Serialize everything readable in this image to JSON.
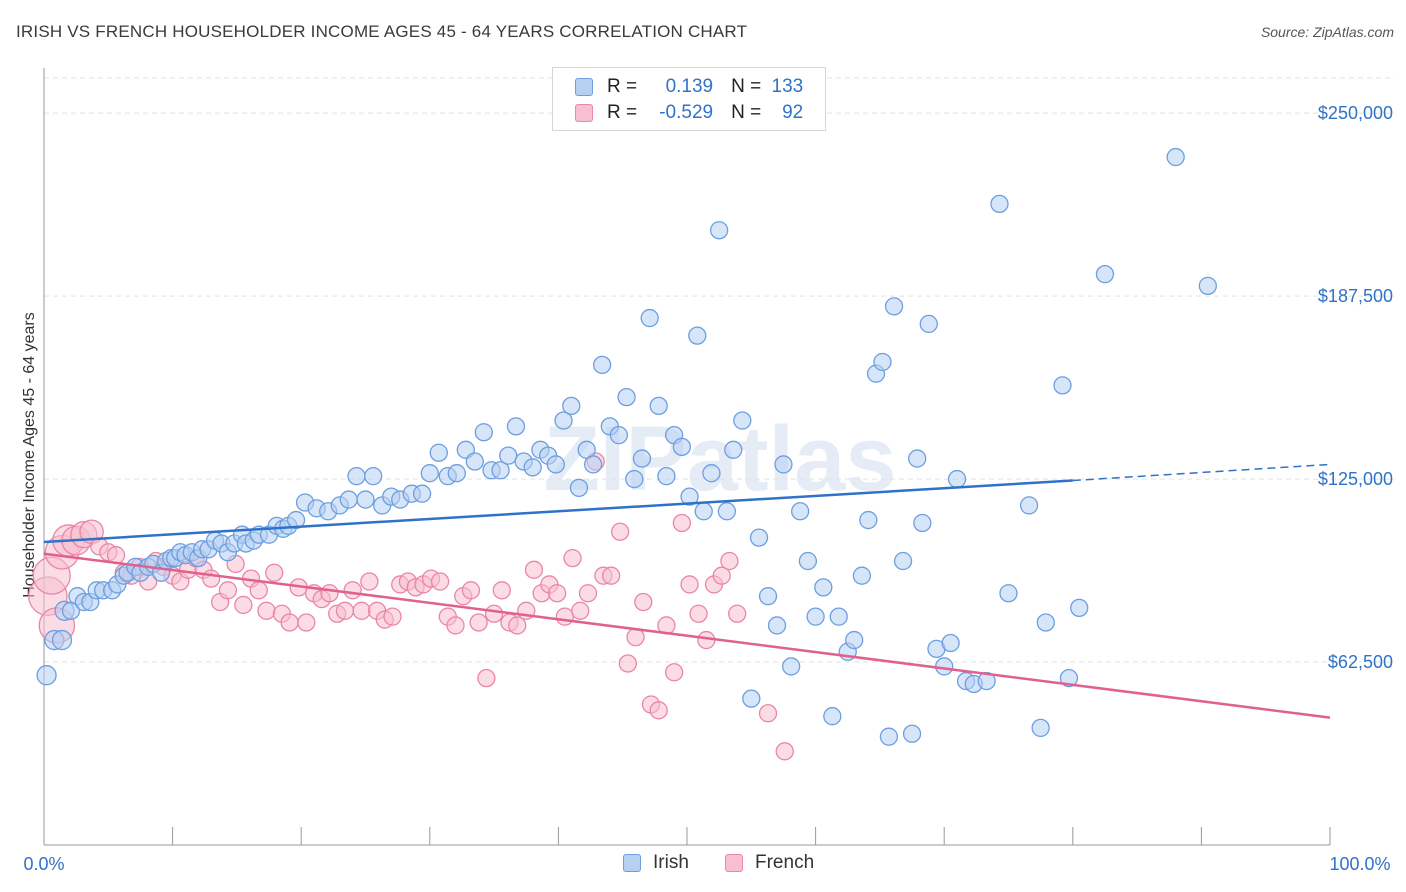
{
  "title": "IRISH VS FRENCH HOUSEHOLDER INCOME AGES 45 - 64 YEARS CORRELATION CHART",
  "source": "Source: ZipAtlas.com",
  "watermark": "ZIPatlas",
  "legend": {
    "r_label": "R =",
    "n_label": "N =",
    "rows": [
      {
        "name": "Irish",
        "r": "0.139",
        "n": "133",
        "fill": "#b6d0f2",
        "stroke": "#6c9fe0"
      },
      {
        "name": "French",
        "r": "-0.529",
        "n": "92",
        "fill": "#f8bfd0",
        "stroke": "#ea86a6"
      }
    ]
  },
  "bottom_legend": [
    {
      "name": "Irish",
      "fill": "#b6d0f2",
      "stroke": "#6c9fe0"
    },
    {
      "name": "French",
      "fill": "#f8bfd0",
      "stroke": "#ea86a6"
    }
  ],
  "chart_data": {
    "type": "scatter",
    "title": "IRISH VS FRENCH HOUSEHOLDER INCOME AGES 45 - 64 YEARS CORRELATION CHART",
    "xlabel": "",
    "ylabel": "Householder Income Ages 45 - 64 years",
    "xlim": [
      0,
      100
    ],
    "ylim": [
      0,
      262000
    ],
    "x_tick_labels": [
      "0.0%",
      "100.0%"
    ],
    "y_ticks": [
      62500,
      125000,
      187500,
      250000
    ],
    "y_tick_labels": [
      "$62,500",
      "$125,000",
      "$187,500",
      "$250,000"
    ],
    "grid": true,
    "legend_position": "top-center",
    "colors": {
      "Irish": "#2f72c9",
      "French": "#e0608f"
    },
    "series": [
      {
        "name": "Irish",
        "trend": {
          "x": [
            0,
            80
          ],
          "y": [
            103500,
            124500
          ],
          "dashed_to": [
            100,
            130000
          ]
        },
        "points": [
          [
            0.2,
            58000
          ],
          [
            0.8,
            70000
          ],
          [
            1.4,
            70000
          ],
          [
            1.6,
            80000
          ],
          [
            2.1,
            80000
          ],
          [
            2.6,
            85000
          ],
          [
            3.1,
            83000
          ],
          [
            3.6,
            83000
          ],
          [
            4.1,
            87000
          ],
          [
            4.6,
            87000
          ],
          [
            5.3,
            87000
          ],
          [
            5.7,
            89000
          ],
          [
            6.2,
            92000
          ],
          [
            6.5,
            93000
          ],
          [
            7.1,
            95000
          ],
          [
            7.5,
            93000
          ],
          [
            8.1,
            95000
          ],
          [
            8.5,
            96000
          ],
          [
            9.1,
            93000
          ],
          [
            9.5,
            97000
          ],
          [
            9.9,
            98000
          ],
          [
            10.2,
            98000
          ],
          [
            10.6,
            100000
          ],
          [
            11.0,
            99000
          ],
          [
            11.5,
            100000
          ],
          [
            12.0,
            98000
          ],
          [
            12.3,
            101000
          ],
          [
            12.8,
            101000
          ],
          [
            13.3,
            104000
          ],
          [
            13.8,
            103000
          ],
          [
            14.3,
            100000
          ],
          [
            14.8,
            103000
          ],
          [
            15.4,
            106000
          ],
          [
            15.7,
            103000
          ],
          [
            16.3,
            104000
          ],
          [
            16.7,
            106000
          ],
          [
            17.5,
            106000
          ],
          [
            18.1,
            109000
          ],
          [
            18.6,
            108000
          ],
          [
            19.0,
            109000
          ],
          [
            19.6,
            111000
          ],
          [
            20.3,
            117000
          ],
          [
            21.2,
            115000
          ],
          [
            22.1,
            114000
          ],
          [
            23.0,
            116000
          ],
          [
            23.7,
            118000
          ],
          [
            24.3,
            126000
          ],
          [
            25.0,
            118000
          ],
          [
            25.6,
            126000
          ],
          [
            26.3,
            116000
          ],
          [
            27.0,
            119000
          ],
          [
            27.7,
            118000
          ],
          [
            28.6,
            120000
          ],
          [
            29.4,
            120000
          ],
          [
            30.0,
            127000
          ],
          [
            30.7,
            134000
          ],
          [
            31.4,
            126000
          ],
          [
            32.1,
            127000
          ],
          [
            32.8,
            135000
          ],
          [
            33.5,
            131000
          ],
          [
            34.2,
            141000
          ],
          [
            34.8,
            128000
          ],
          [
            35.5,
            128000
          ],
          [
            36.1,
            133000
          ],
          [
            36.7,
            143000
          ],
          [
            37.3,
            131000
          ],
          [
            38.0,
            129000
          ],
          [
            38.6,
            135000
          ],
          [
            39.2,
            133000
          ],
          [
            39.8,
            130000
          ],
          [
            40.4,
            145000
          ],
          [
            41.0,
            150000
          ],
          [
            41.6,
            122000
          ],
          [
            42.2,
            135000
          ],
          [
            42.7,
            130000
          ],
          [
            43.4,
            164000
          ],
          [
            44.0,
            143000
          ],
          [
            44.7,
            140000
          ],
          [
            45.3,
            153000
          ],
          [
            45.9,
            125000
          ],
          [
            46.5,
            132000
          ],
          [
            47.1,
            180000
          ],
          [
            47.8,
            150000
          ],
          [
            48.4,
            126000
          ],
          [
            49.0,
            140000
          ],
          [
            49.6,
            136000
          ],
          [
            50.2,
            119000
          ],
          [
            50.8,
            174000
          ],
          [
            51.3,
            114000
          ],
          [
            51.9,
            127000
          ],
          [
            52.5,
            210000
          ],
          [
            53.1,
            114000
          ],
          [
            53.6,
            135000
          ],
          [
            54.3,
            145000
          ],
          [
            55.0,
            50000
          ],
          [
            55.6,
            105000
          ],
          [
            56.3,
            85000
          ],
          [
            57.0,
            75000
          ],
          [
            57.5,
            130000
          ],
          [
            58.1,
            61000
          ],
          [
            58.8,
            114000
          ],
          [
            59.4,
            97000
          ],
          [
            60.0,
            78000
          ],
          [
            60.6,
            88000
          ],
          [
            61.3,
            44000
          ],
          [
            61.8,
            78000
          ],
          [
            62.5,
            66000
          ],
          [
            63.0,
            70000
          ],
          [
            63.6,
            92000
          ],
          [
            64.1,
            111000
          ],
          [
            64.7,
            161000
          ],
          [
            65.2,
            165000
          ],
          [
            65.7,
            37000
          ],
          [
            66.1,
            184000
          ],
          [
            66.8,
            97000
          ],
          [
            67.5,
            38000
          ],
          [
            67.9,
            132000
          ],
          [
            68.3,
            110000
          ],
          [
            68.8,
            178000
          ],
          [
            69.4,
            67000
          ],
          [
            70.0,
            61000
          ],
          [
            70.5,
            69000
          ],
          [
            71.0,
            125000
          ],
          [
            71.7,
            56000
          ],
          [
            72.3,
            55000
          ],
          [
            73.3,
            56000
          ],
          [
            74.3,
            219000
          ],
          [
            75.0,
            86000
          ],
          [
            76.6,
            116000
          ],
          [
            77.5,
            40000
          ],
          [
            77.9,
            76000
          ],
          [
            79.2,
            157000
          ],
          [
            79.7,
            57000
          ],
          [
            80.5,
            81000
          ],
          [
            82.5,
            195000
          ],
          [
            88.0,
            235000
          ],
          [
            90.5,
            191000
          ]
        ]
      },
      {
        "name": "French",
        "trend": {
          "x": [
            0,
            100
          ],
          "y": [
            99500,
            43500
          ]
        },
        "points": [
          [
            0.3,
            85000
          ],
          [
            0.6,
            92000
          ],
          [
            1.0,
            75000
          ],
          [
            1.4,
            100000
          ],
          [
            1.9,
            104000
          ],
          [
            2.5,
            104000
          ],
          [
            3.1,
            106000
          ],
          [
            3.7,
            107000
          ],
          [
            4.3,
            102000
          ],
          [
            5.0,
            100000
          ],
          [
            5.6,
            99000
          ],
          [
            6.2,
            93000
          ],
          [
            6.8,
            92000
          ],
          [
            7.4,
            95000
          ],
          [
            8.1,
            90000
          ],
          [
            8.7,
            97000
          ],
          [
            9.3,
            95000
          ],
          [
            10.0,
            92000
          ],
          [
            10.6,
            90000
          ],
          [
            11.2,
            94000
          ],
          [
            11.8,
            98000
          ],
          [
            12.4,
            94000
          ],
          [
            13.0,
            91000
          ],
          [
            13.7,
            83000
          ],
          [
            14.3,
            87000
          ],
          [
            14.9,
            96000
          ],
          [
            15.5,
            82000
          ],
          [
            16.1,
            91000
          ],
          [
            16.7,
            87000
          ],
          [
            17.3,
            80000
          ],
          [
            17.9,
            93000
          ],
          [
            18.5,
            79000
          ],
          [
            19.1,
            76000
          ],
          [
            19.8,
            88000
          ],
          [
            20.4,
            76000
          ],
          [
            21.0,
            86000
          ],
          [
            21.6,
            84000
          ],
          [
            22.2,
            86000
          ],
          [
            22.8,
            79000
          ],
          [
            23.4,
            80000
          ],
          [
            24.0,
            87000
          ],
          [
            24.7,
            80000
          ],
          [
            25.3,
            90000
          ],
          [
            25.9,
            80000
          ],
          [
            26.5,
            77000
          ],
          [
            27.1,
            78000
          ],
          [
            27.7,
            89000
          ],
          [
            28.3,
            90000
          ],
          [
            28.9,
            88000
          ],
          [
            29.5,
            89000
          ],
          [
            30.1,
            91000
          ],
          [
            30.8,
            90000
          ],
          [
            31.4,
            78000
          ],
          [
            32.0,
            75000
          ],
          [
            32.6,
            85000
          ],
          [
            33.2,
            87000
          ],
          [
            33.8,
            76000
          ],
          [
            34.4,
            57000
          ],
          [
            35.0,
            79000
          ],
          [
            35.6,
            87000
          ],
          [
            36.2,
            76000
          ],
          [
            36.8,
            75000
          ],
          [
            37.5,
            80000
          ],
          [
            38.1,
            94000
          ],
          [
            38.7,
            86000
          ],
          [
            39.3,
            89000
          ],
          [
            39.9,
            86000
          ],
          [
            40.5,
            78000
          ],
          [
            41.1,
            98000
          ],
          [
            41.7,
            80000
          ],
          [
            42.3,
            86000
          ],
          [
            42.9,
            131000
          ],
          [
            43.5,
            92000
          ],
          [
            44.1,
            92000
          ],
          [
            44.8,
            107000
          ],
          [
            45.4,
            62000
          ],
          [
            46.0,
            71000
          ],
          [
            46.6,
            83000
          ],
          [
            47.2,
            48000
          ],
          [
            47.8,
            46000
          ],
          [
            48.4,
            75000
          ],
          [
            49.0,
            59000
          ],
          [
            49.6,
            110000
          ],
          [
            50.2,
            89000
          ],
          [
            50.9,
            79000
          ],
          [
            51.5,
            70000
          ],
          [
            52.1,
            89000
          ],
          [
            52.7,
            92000
          ],
          [
            53.3,
            97000
          ],
          [
            53.9,
            79000
          ],
          [
            56.3,
            45000
          ],
          [
            57.6,
            32000
          ]
        ]
      }
    ]
  }
}
